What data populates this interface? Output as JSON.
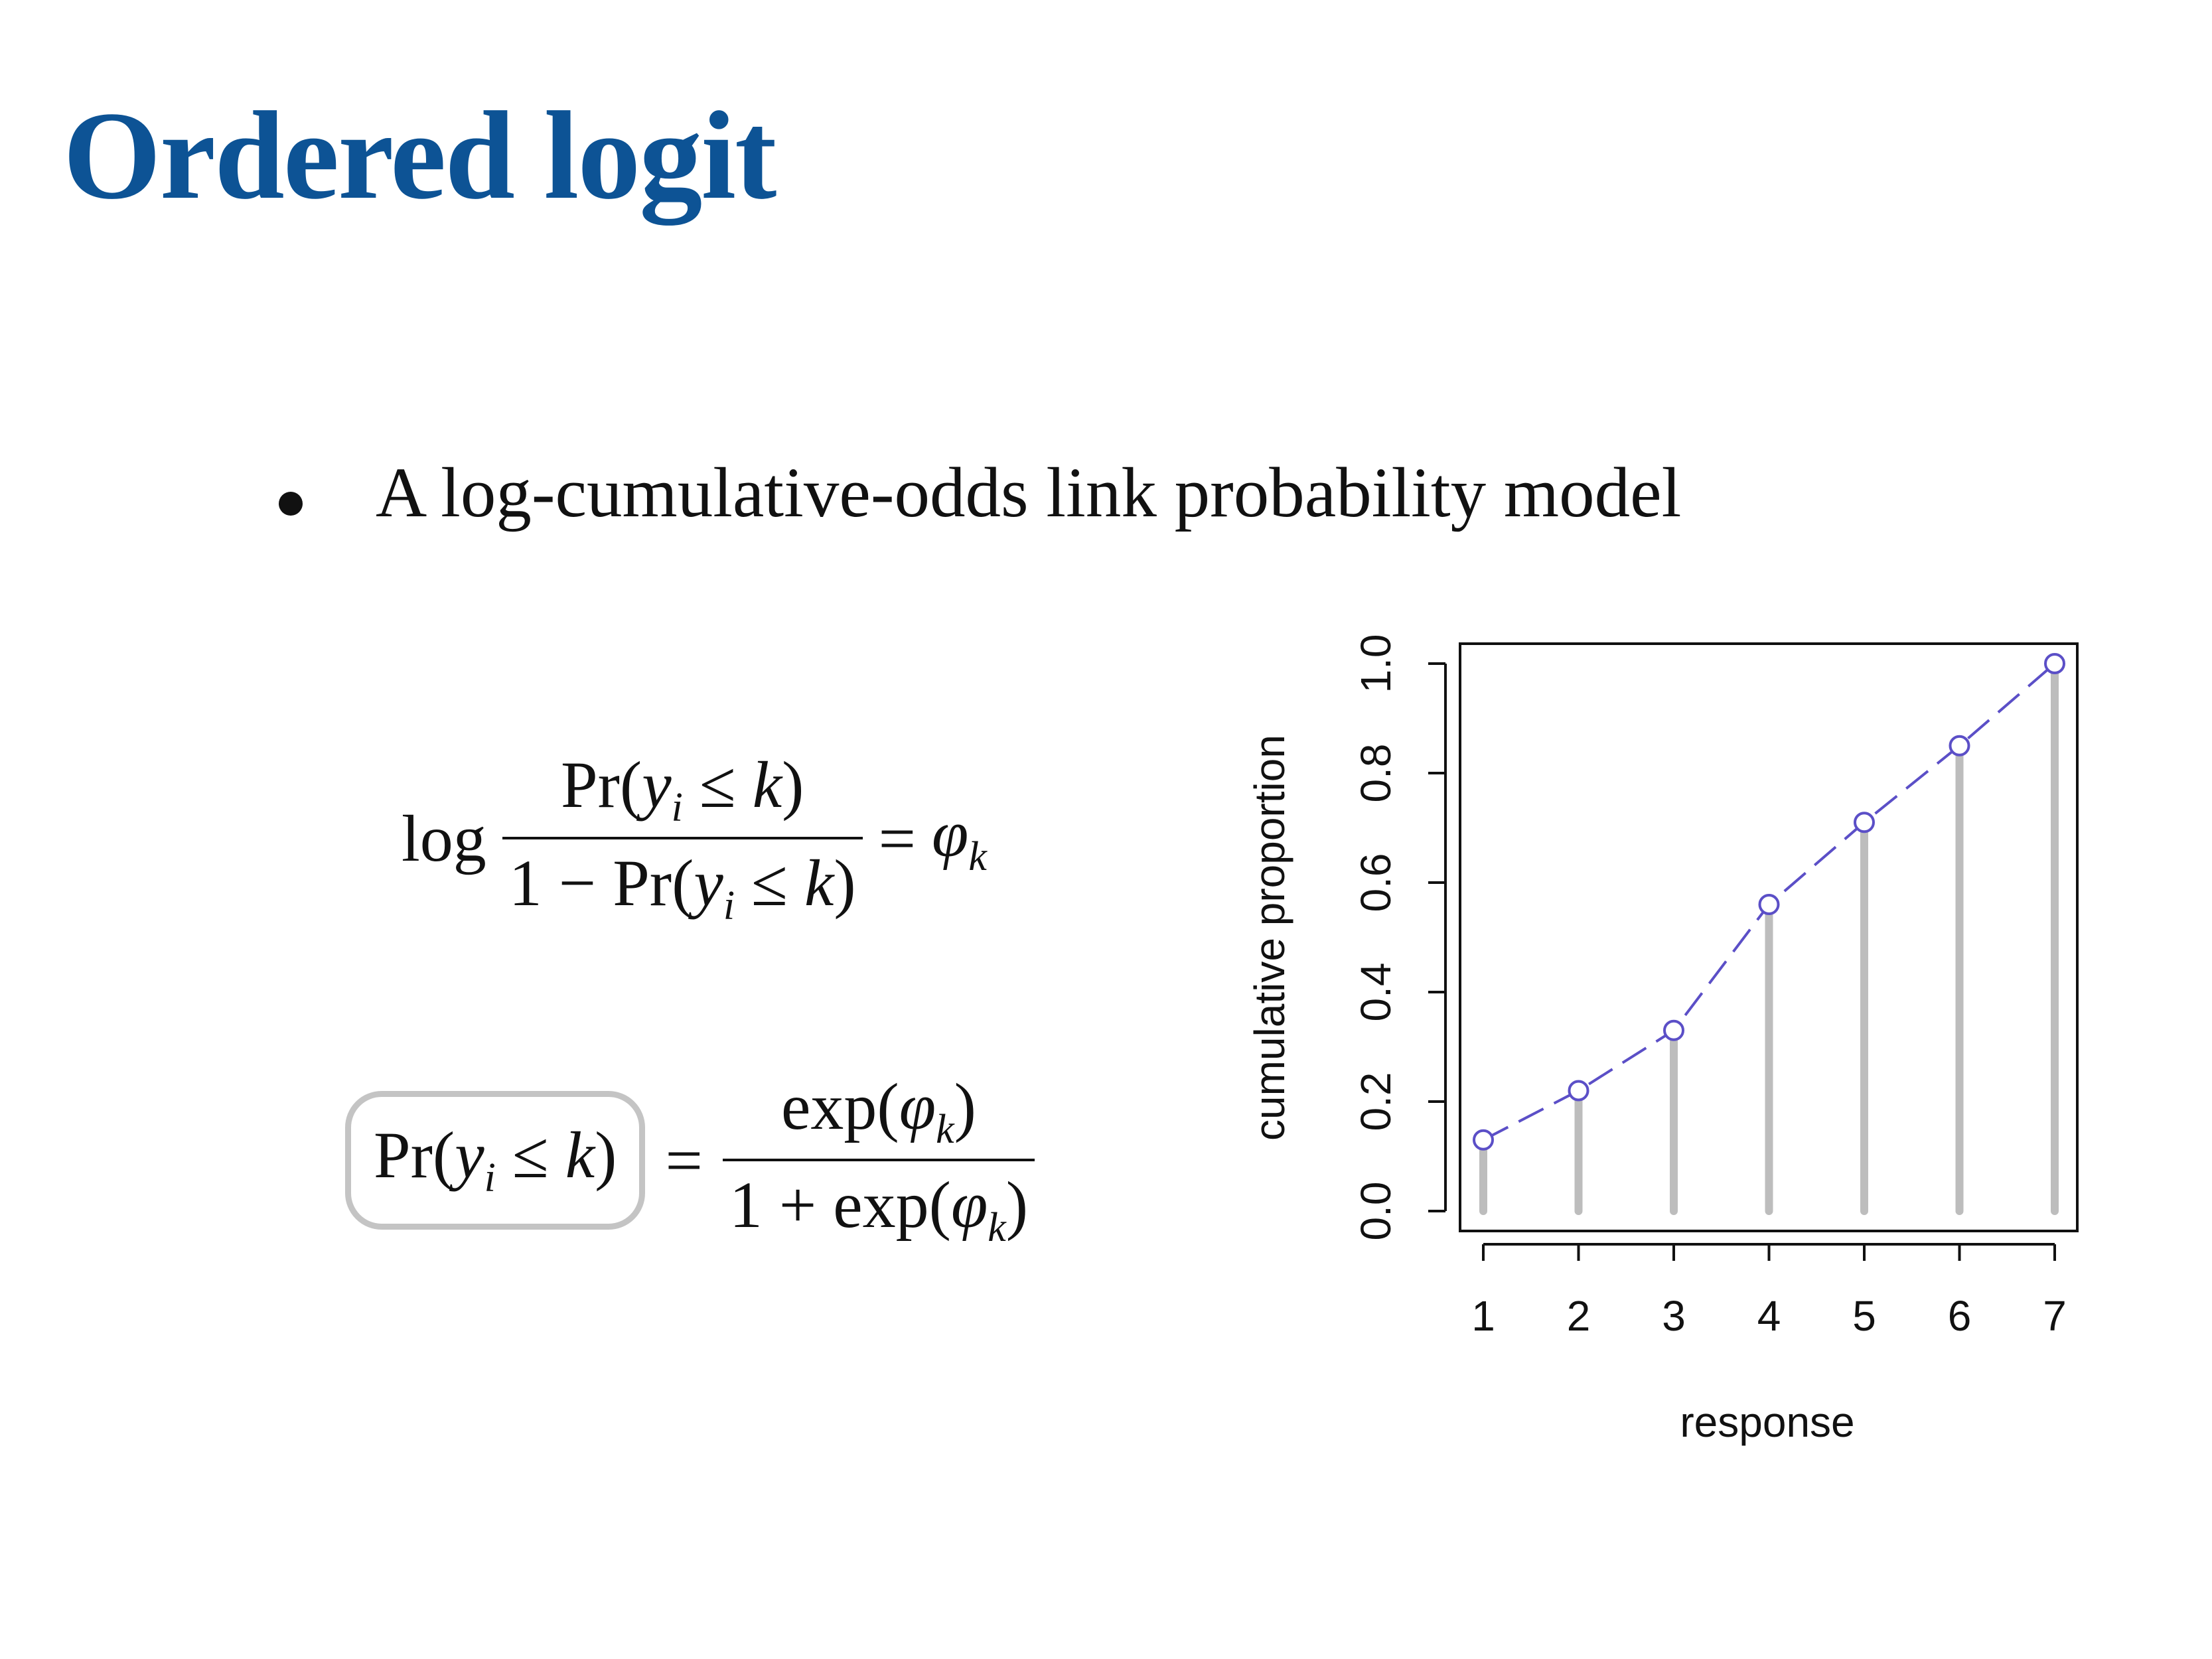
{
  "slide": {
    "title": "Ordered logit",
    "bullet": "A log-cumulative-odds link probability model"
  },
  "equations": {
    "eq1": {
      "lhs": "log",
      "num_pre": "Pr(",
      "var": "y",
      "sub": "i",
      "rel": " ≤ ",
      "k": "k",
      "close": ")",
      "den_prefix": "1 − Pr(",
      "equals": "=",
      "rhs": "φ",
      "rhs_sub": "k"
    },
    "eq2": {
      "box_pre": "Pr(",
      "var": "y",
      "sub": "i",
      "rel": " ≤ ",
      "k": "k",
      "close": ")",
      "equals": "=",
      "num": "exp(",
      "phi": "φ",
      "phi_sub": "k",
      "num_close": ")",
      "den_prefix": "1 + exp("
    }
  },
  "colors": {
    "title": "#0d5395",
    "line": "#5b4fc7",
    "stem": "#bdbdbd",
    "box": "#c4c4c4"
  },
  "chart_data": {
    "type": "line",
    "x": [
      1,
      2,
      3,
      4,
      5,
      6,
      7
    ],
    "values": [
      0.13,
      0.22,
      0.33,
      0.56,
      0.71,
      0.85,
      1.0
    ],
    "xlabel": "response",
    "ylabel": "cumulative proportion",
    "xticks": [
      "1",
      "2",
      "3",
      "4",
      "5",
      "6",
      "7"
    ],
    "yticks": [
      "0.0",
      "0.2",
      "0.4",
      "0.6",
      "0.8",
      "1.0"
    ],
    "ylim": [
      0,
      1
    ],
    "xlim": [
      1,
      7
    ],
    "line_style": "dashed",
    "markers": "open-circle",
    "stems": true,
    "grid": false
  }
}
